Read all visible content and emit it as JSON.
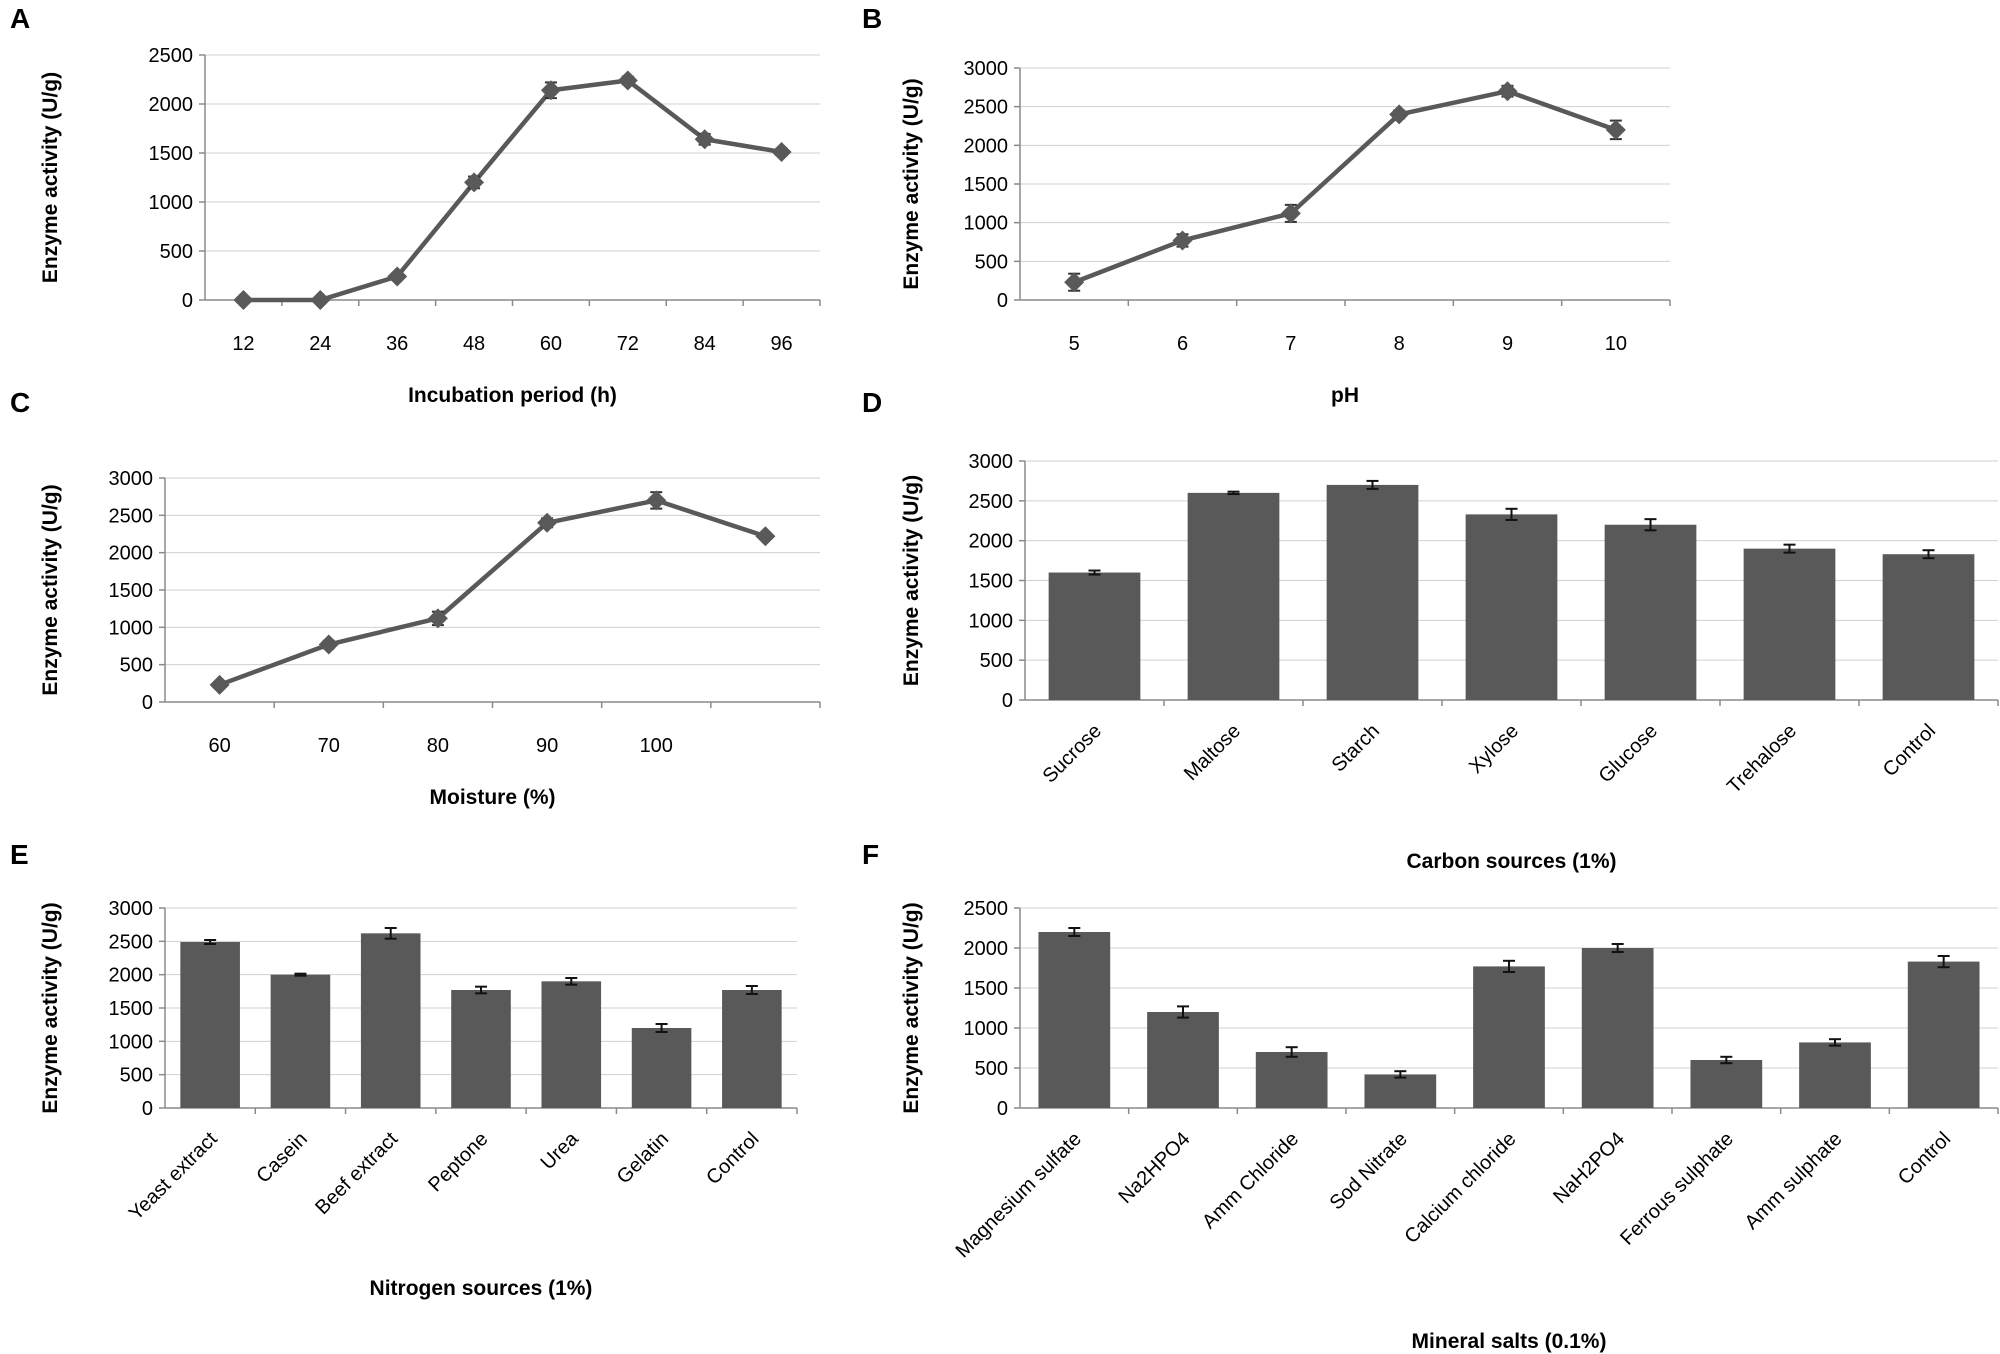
{
  "colors": {
    "series": "#595959",
    "axis": "#8a8a8a",
    "grid": "#d0d0d0"
  },
  "chart_data": [
    {
      "panel": "A",
      "type": "line",
      "categories": [
        "12",
        "24",
        "36",
        "48",
        "60",
        "72",
        "84",
        "96"
      ],
      "values": [
        0,
        0,
        240,
        1200,
        2140,
        2240,
        1640,
        1510
      ],
      "errors": [
        0,
        0,
        25,
        60,
        80,
        40,
        55,
        35
      ],
      "ylim": [
        0,
        2500
      ],
      "yticks": [
        "0",
        "500",
        "1000",
        "1500",
        "2000",
        "2500"
      ],
      "xlabel": "Incubation period (h)",
      "ylabel": "Enzyme activity (U/g)"
    },
    {
      "panel": "B",
      "type": "line",
      "categories": [
        "5",
        "6",
        "7",
        "8",
        "9",
        "10"
      ],
      "values": [
        230,
        770,
        1120,
        2400,
        2700,
        2200
      ],
      "errors": [
        110,
        80,
        110,
        50,
        70,
        120
      ],
      "ylim": [
        0,
        3000
      ],
      "yticks": [
        "0",
        "500",
        "1000",
        "1500",
        "2000",
        "2500",
        "3000"
      ],
      "xlabel": "pH",
      "ylabel": "Enzyme activity (U/g)"
    },
    {
      "panel": "C",
      "type": "line",
      "categories": [
        "60",
        "70",
        "80",
        "90",
        "100",
        ""
      ],
      "values": [
        230,
        770,
        1120,
        2400,
        2700,
        2220
      ],
      "errors": [
        20,
        50,
        90,
        60,
        110,
        20
      ],
      "ylim": [
        0,
        3000
      ],
      "yticks": [
        "0",
        "500",
        "1000",
        "1500",
        "2000",
        "2500",
        "3000"
      ],
      "xlabel": "Moisture (%)",
      "ylabel": "Enzyme activity (U/g)"
    },
    {
      "panel": "D",
      "type": "bar",
      "categories": [
        "Sucrose",
        "Maltose",
        "Starch",
        "Xylose",
        "Glucose",
        "Trehalose",
        "Control"
      ],
      "values": [
        1600,
        2600,
        2700,
        2330,
        2200,
        1900,
        1830
      ],
      "errors": [
        25,
        15,
        50,
        70,
        70,
        50,
        50
      ],
      "ylim": [
        0,
        3000
      ],
      "yticks": [
        "0",
        "500",
        "1000",
        "1500",
        "2000",
        "2500",
        "3000"
      ],
      "xlabel": "Carbon sources (1%)",
      "ylabel": "Enzyme activity (U/g)"
    },
    {
      "panel": "E",
      "type": "bar",
      "categories": [
        "Yeast extract",
        "Casein",
        "Beef extract",
        "Peptone",
        "Urea",
        "Gelatin",
        "Control"
      ],
      "values": [
        2490,
        2000,
        2620,
        1770,
        1900,
        1200,
        1770
      ],
      "errors": [
        30,
        15,
        80,
        50,
        50,
        60,
        60
      ],
      "ylim": [
        0,
        3000
      ],
      "yticks": [
        "0",
        "500",
        "1000",
        "1500",
        "2000",
        "2500",
        "3000"
      ],
      "xlabel": "Nitrogen sources (1%)",
      "ylabel": "Enzyme activity (U/g)"
    },
    {
      "panel": "F",
      "type": "bar",
      "categories": [
        "Magnesium sulfate",
        "Na2HPO4",
        "Amm Chloride",
        "Sod Nitrate",
        "Calcium chloride",
        "NaH2PO4",
        "Ferrous sulphate",
        "Amm sulphate",
        "Control"
      ],
      "values": [
        2200,
        1200,
        700,
        420,
        1770,
        2000,
        600,
        820,
        1830
      ],
      "errors": [
        50,
        70,
        60,
        40,
        70,
        50,
        40,
        40,
        70
      ],
      "ylim": [
        0,
        2500
      ],
      "yticks": [
        "0",
        "500",
        "1000",
        "1500",
        "2000",
        "2500"
      ],
      "xlabel": "Mineral salts (0.1%)",
      "ylabel": "Enzyme activity (U/g)"
    }
  ]
}
